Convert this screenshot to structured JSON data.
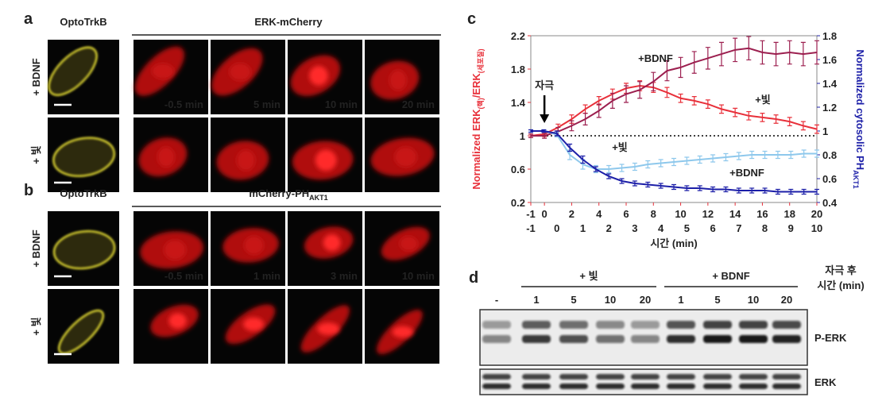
{
  "panels": {
    "a": {
      "label": "a",
      "left_header": "OptoTrkB",
      "right_header": "ERK-mCherry",
      "rows": [
        "+ BDNF",
        "+ 빛"
      ],
      "times": [
        "-0.5 min",
        "5 min",
        "10 min",
        "20 min"
      ]
    },
    "b": {
      "label": "b",
      "left_header": "OptoTrkB",
      "right_header": "mCherry-PH",
      "right_header_sub": "AKT1",
      "rows": [
        "+ BDNF",
        "+ 빛"
      ],
      "times": [
        "-0.5 min",
        "1 min",
        "3 min",
        "10 min"
      ]
    },
    "c": {
      "label": "c"
    },
    "d": {
      "label": "d",
      "groups": [
        "+ 빛",
        "+ BDNF"
      ],
      "lanes": [
        "-",
        "1",
        "5",
        "10",
        "20",
        "1",
        "5",
        "10",
        "20"
      ],
      "time_header": [
        "자극 후",
        "시간 (min)"
      ],
      "bands": [
        "P-ERK",
        "ERK"
      ]
    }
  },
  "chart_data": {
    "type": "line",
    "ylabel": [
      "Normalized ERK",
      "(핵)",
      "/ERK",
      "(세포질)"
    ],
    "y2label": [
      "Normalized cytosolic PH",
      "AKT1"
    ],
    "xlabel": "시간 (min)",
    "annotation": "자극",
    "hline": 1,
    "xlim": [
      -1,
      20
    ],
    "xticks": [
      -1,
      0,
      2,
      4,
      6,
      8,
      10,
      12,
      14,
      16,
      18,
      20
    ],
    "x2lim": [
      -1,
      10
    ],
    "x2ticks": [
      -1,
      0,
      1,
      2,
      3,
      4,
      5,
      6,
      7,
      8,
      9,
      10
    ],
    "ylim": [
      0.2,
      2.2
    ],
    "yticks": [
      0.2,
      0.6,
      1,
      1.4,
      1.8,
      2.2
    ],
    "y2lim": [
      0.4,
      1.8
    ],
    "y2ticks": [
      0.4,
      0.6,
      0.8,
      1,
      1.2,
      1.4,
      1.6,
      1.8
    ],
    "series": [
      {
        "name": "+빛",
        "color": "#e8303a",
        "x": [
          -1,
          0,
          1,
          2,
          3,
          4,
          5,
          6,
          7,
          8,
          9,
          10,
          11,
          12,
          13,
          14,
          15,
          16,
          17,
          18,
          19,
          20
        ],
        "values": [
          1.0,
          1.02,
          1.1,
          1.2,
          1.32,
          1.42,
          1.5,
          1.57,
          1.6,
          1.58,
          1.52,
          1.45,
          1.42,
          1.38,
          1.32,
          1.28,
          1.24,
          1.22,
          1.2,
          1.17,
          1.12,
          1.08
        ],
        "errors": [
          0.02,
          0.03,
          0.04,
          0.05,
          0.05,
          0.05,
          0.06,
          0.06,
          0.06,
          0.06,
          0.06,
          0.05,
          0.05,
          0.05,
          0.05,
          0.05,
          0.05,
          0.05,
          0.05,
          0.05,
          0.05,
          0.05
        ]
      },
      {
        "name": "+BDNF",
        "color": "#9c1f4f",
        "x": [
          -1,
          0,
          1,
          2,
          3,
          4,
          5,
          6,
          7,
          8,
          9,
          10,
          11,
          12,
          13,
          14,
          15,
          16,
          17,
          18,
          19,
          20
        ],
        "values": [
          1.0,
          1.0,
          1.05,
          1.12,
          1.2,
          1.3,
          1.42,
          1.5,
          1.55,
          1.65,
          1.78,
          1.82,
          1.88,
          1.93,
          1.98,
          2.03,
          2.05,
          2.0,
          1.98,
          2.0,
          1.98,
          2.0
        ],
        "errors": [
          0.02,
          0.03,
          0.05,
          0.06,
          0.07,
          0.08,
          0.09,
          0.1,
          0.1,
          0.11,
          0.12,
          0.12,
          0.13,
          0.13,
          0.14,
          0.14,
          0.14,
          0.14,
          0.14,
          0.14,
          0.14,
          0.14
        ]
      },
      {
        "name": "+빛",
        "color": "#8ec8ec",
        "axis": "y2",
        "x": [
          -1,
          -0.5,
          0,
          0.5,
          1,
          1.5,
          2,
          2.5,
          3,
          3.5,
          4,
          4.5,
          5,
          5.5,
          6,
          6.5,
          7,
          7.5,
          8,
          8.5,
          9,
          9.5,
          10
        ],
        "values": [
          1.0,
          1.0,
          0.97,
          0.8,
          0.72,
          0.68,
          0.68,
          0.69,
          0.7,
          0.72,
          0.73,
          0.74,
          0.75,
          0.76,
          0.77,
          0.78,
          0.79,
          0.8,
          0.8,
          0.8,
          0.8,
          0.81,
          0.81
        ],
        "errors": [
          0.01,
          0.01,
          0.02,
          0.04,
          0.04,
          0.03,
          0.03,
          0.03,
          0.03,
          0.03,
          0.03,
          0.03,
          0.03,
          0.03,
          0.03,
          0.03,
          0.03,
          0.03,
          0.03,
          0.03,
          0.03,
          0.03,
          0.03
        ]
      },
      {
        "name": "+BDNF",
        "color": "#1c1fa8",
        "axis": "y2",
        "x": [
          -1,
          -0.5,
          0,
          0.5,
          1,
          1.5,
          2,
          2.5,
          3,
          3.5,
          4,
          4.5,
          5,
          5.5,
          6,
          6.5,
          7,
          7.5,
          8,
          8.5,
          9,
          9.5,
          10
        ],
        "values": [
          1.0,
          1.0,
          0.98,
          0.86,
          0.76,
          0.68,
          0.62,
          0.58,
          0.56,
          0.55,
          0.54,
          0.53,
          0.52,
          0.52,
          0.51,
          0.51,
          0.5,
          0.5,
          0.5,
          0.49,
          0.49,
          0.49,
          0.49
        ],
        "errors": [
          0.01,
          0.01,
          0.02,
          0.03,
          0.03,
          0.02,
          0.02,
          0.02,
          0.02,
          0.02,
          0.02,
          0.02,
          0.02,
          0.02,
          0.02,
          0.02,
          0.02,
          0.02,
          0.02,
          0.02,
          0.02,
          0.02,
          0.02
        ]
      }
    ]
  }
}
